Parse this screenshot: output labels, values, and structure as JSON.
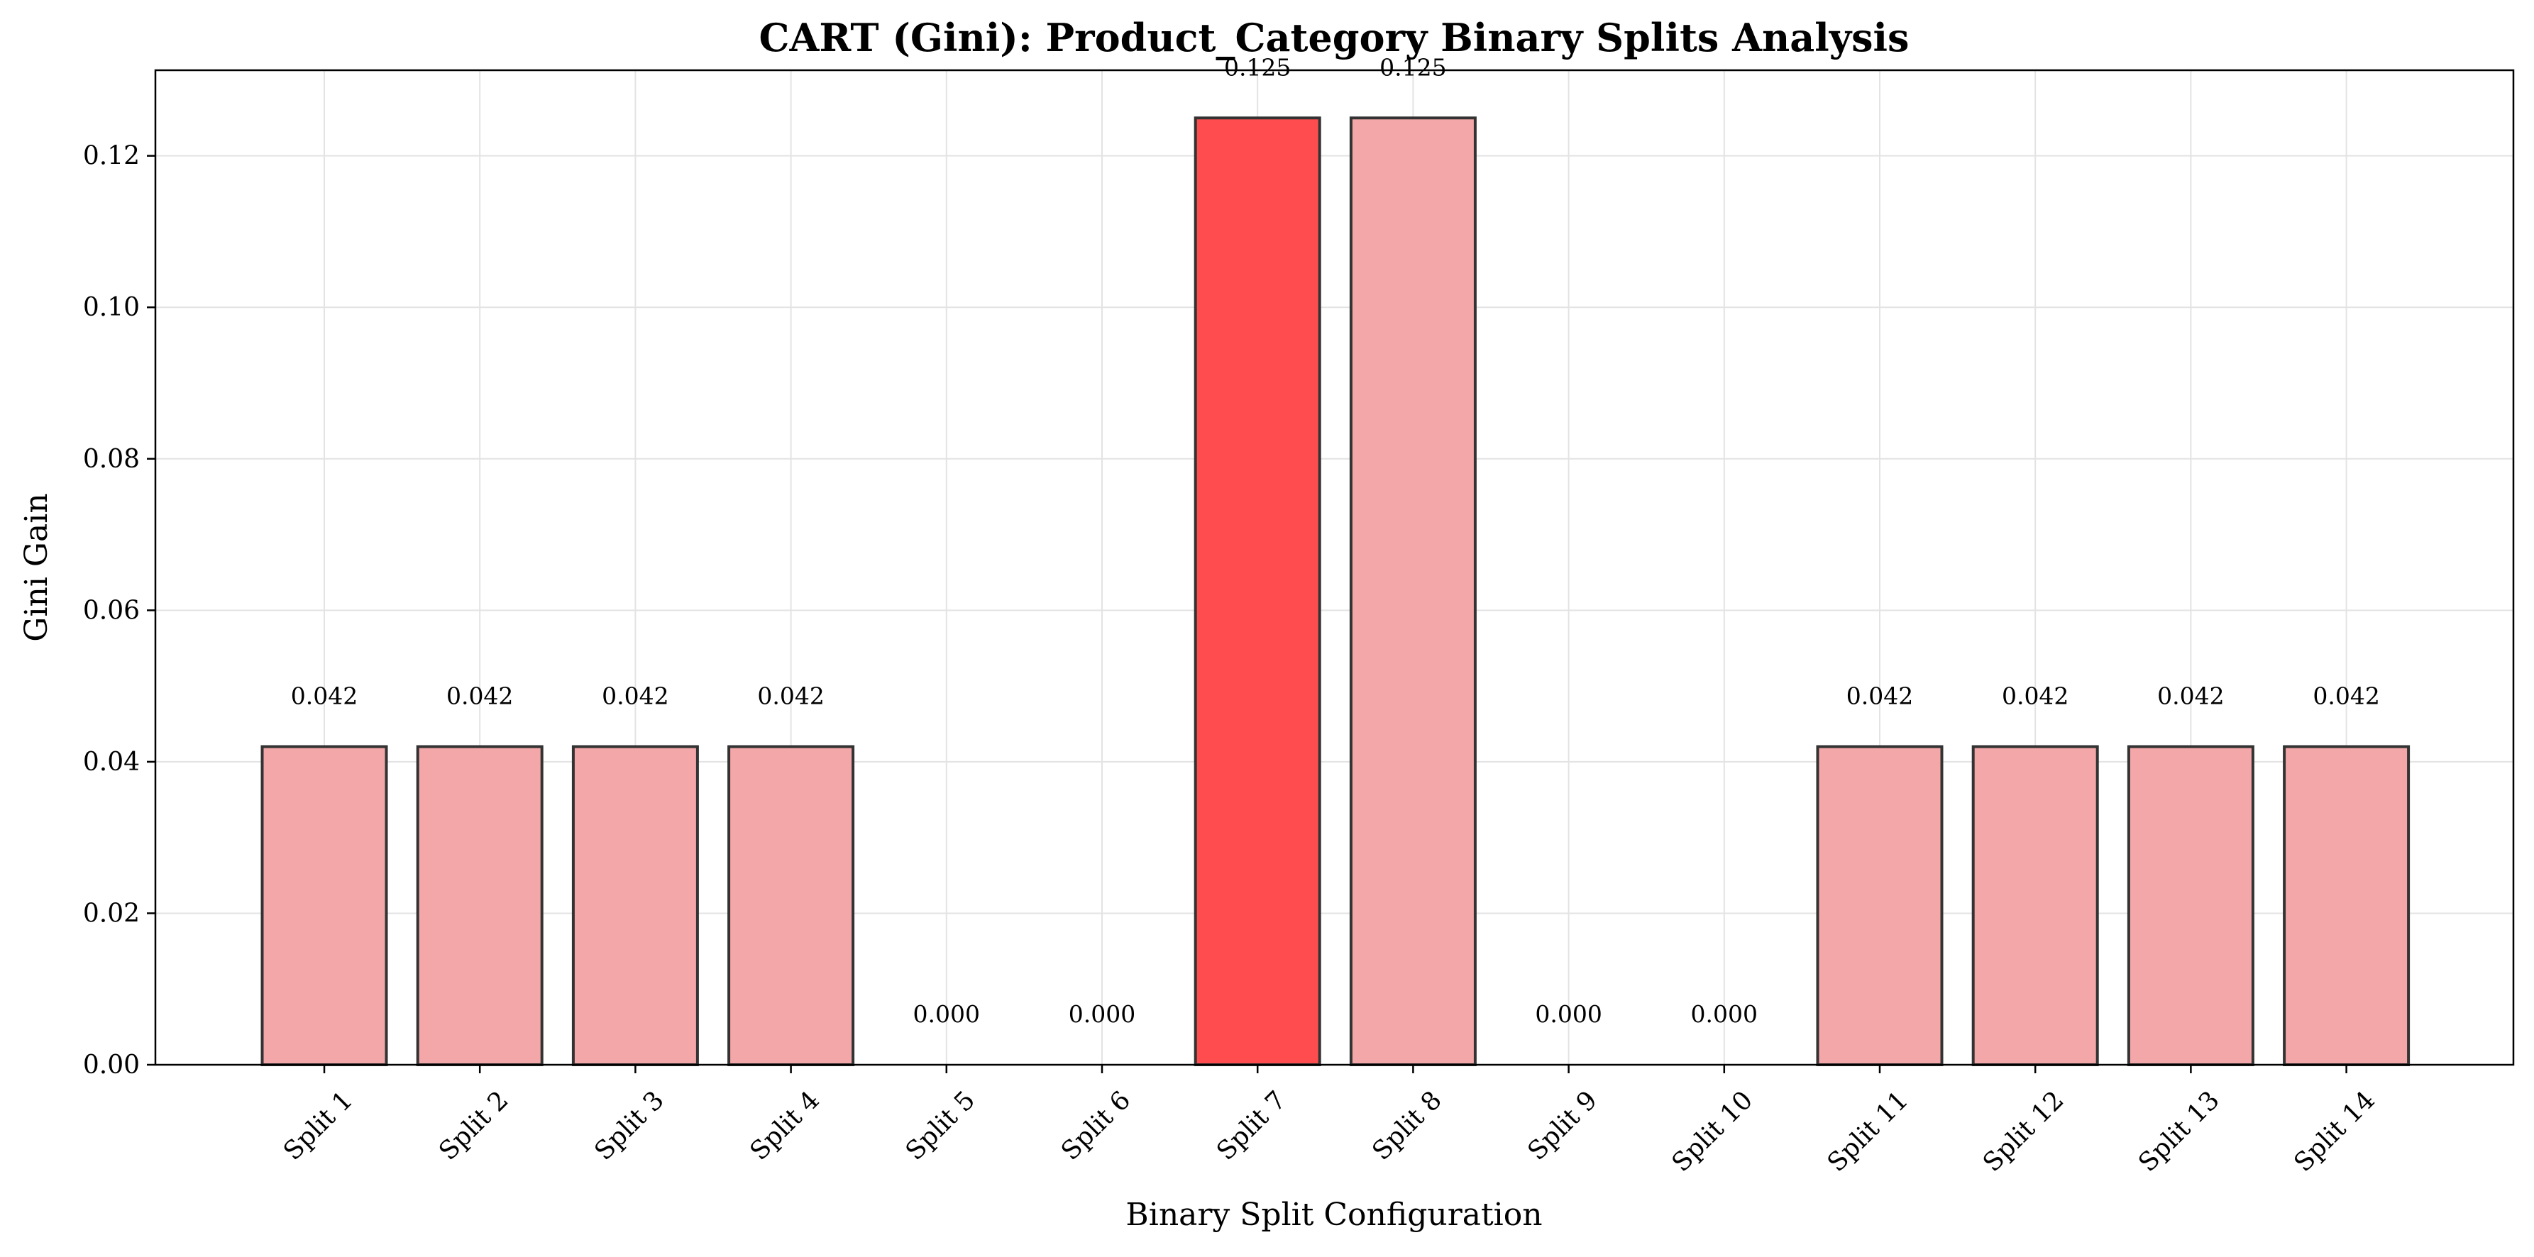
{
  "chart_data": {
    "type": "bar",
    "title": "CART (Gini): Product_Category Binary Splits Analysis",
    "xlabel": "Binary Split Configuration",
    "ylabel": "Gini Gain",
    "categories": [
      "Split 1",
      "Split 2",
      "Split 3",
      "Split 4",
      "Split 5",
      "Split 6",
      "Split 7",
      "Split 8",
      "Split 9",
      "Split 10",
      "Split 11",
      "Split 12",
      "Split 13",
      "Split 14"
    ],
    "values": [
      0.042,
      0.042,
      0.042,
      0.042,
      0.0,
      0.0,
      0.125,
      0.125,
      0.0,
      0.0,
      0.042,
      0.042,
      0.042,
      0.042
    ],
    "value_labels": [
      "0.042",
      "0.042",
      "0.042",
      "0.042",
      "0.000",
      "0.000",
      "0.125",
      "0.125",
      "0.000",
      "0.000",
      "0.042",
      "0.042",
      "0.042",
      "0.042"
    ],
    "highlight_index": 6,
    "ylim": [
      0,
      0.1313
    ],
    "yticks": [
      0.0,
      0.02,
      0.04,
      0.06,
      0.08,
      0.1,
      0.12
    ],
    "ytick_labels": [
      "0.00",
      "0.02",
      "0.04",
      "0.06",
      "0.08",
      "0.10",
      "0.12"
    ],
    "grid": true,
    "colors": {
      "bar": "#f4a7a9",
      "highlight": "#ff4d4f",
      "edge": "#333333"
    }
  }
}
